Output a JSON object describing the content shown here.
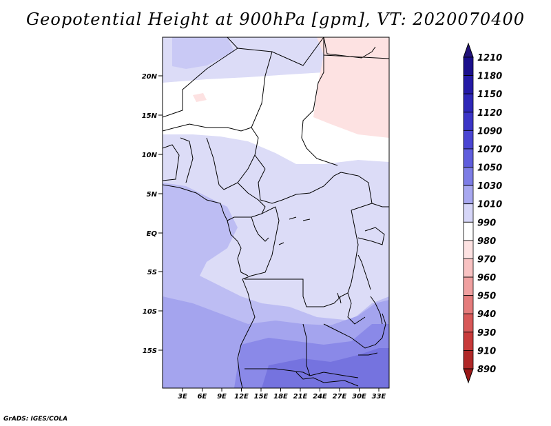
{
  "title": "Geopotential Height at 900hPa [gpm], VT: 2020070400",
  "credit": "GrADS: IGES/COLA",
  "map": {
    "lat_labels": [
      "20N",
      "15N",
      "10N",
      "5N",
      "EQ",
      "5S",
      "10S",
      "15S"
    ],
    "lon_labels": [
      "3E",
      "6E",
      "9E",
      "12E",
      "15E",
      "18E",
      "21E",
      "24E",
      "27E",
      "30E",
      "33E"
    ]
  },
  "colorbar": {
    "levels": [
      "1210",
      "1180",
      "1150",
      "1120",
      "1090",
      "1070",
      "1050",
      "1030",
      "1010",
      "990",
      "980",
      "970",
      "960",
      "950",
      "940",
      "930",
      "910",
      "890"
    ],
    "colors": [
      "#1a0f8c",
      "#241aa6",
      "#2e27b8",
      "#3b35c7",
      "#4a45d3",
      "#5f5ddd",
      "#7d7de6",
      "#a8a8f0",
      "#d6d6f8",
      "#ffffff",
      "#fde2e2",
      "#f8c2c2",
      "#f0a0a0",
      "#e57c7c",
      "#d85858",
      "#c83a3a",
      "#b02828",
      "#8f1a1a"
    ],
    "top_color": "#22127a",
    "bottom_color": "#9a1818"
  }
}
